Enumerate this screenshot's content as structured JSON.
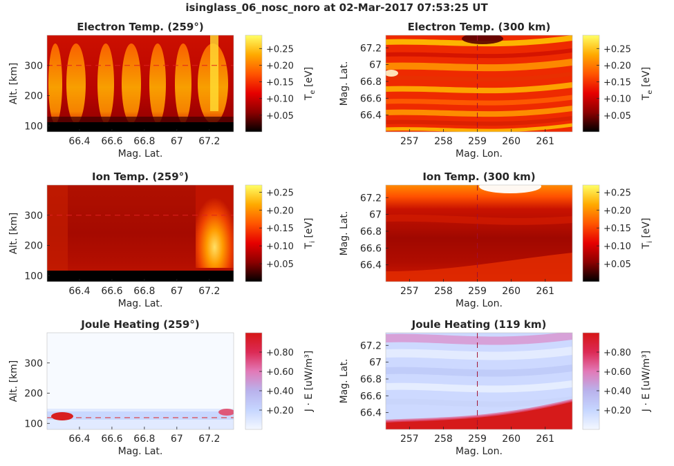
{
  "figure_title": "isinglass_06_nosc_noro at 02-Mar-2017 07:53:25 UT",
  "colormaps": {
    "hot": [
      "#000000",
      "#8b0000",
      "#e60000",
      "#ff5500",
      "#ffaa00",
      "#ffff66"
    ],
    "heat": [
      "#f4f8ff",
      "#c6d6ff",
      "#b9b2ec",
      "#e27ab8",
      "#dc2a55",
      "#d61616"
    ]
  },
  "chart_data": [
    {
      "id": "p1",
      "type": "heatmap",
      "title": "Electron Temp. (259°)",
      "xlabel": "Mag. Lat.",
      "ylabel": "Alt. [km]",
      "xlim": [
        66.2,
        67.35
      ],
      "ylim": [
        80,
        400
      ],
      "xticks": [
        66.4,
        66.6,
        66.8,
        67,
        67.2
      ],
      "xticklabels": [
        "66.4",
        "66.6",
        "66.8",
        "67",
        "67.2"
      ],
      "yticks": [
        100,
        200,
        300
      ],
      "yticklabels": [
        "100",
        "200",
        "300"
      ],
      "ref_line": {
        "axis": "y",
        "value": 300
      },
      "colorbar": {
        "label": "T",
        "label_sub": "e",
        "label_unit": "[eV]",
        "cmap": "hot",
        "range": [
          0,
          0.29
        ],
        "ticks": [
          0.05,
          0.1,
          0.15,
          0.2,
          0.25
        ],
        "ticklabels": [
          "+0.05",
          "+0.10",
          "+0.15",
          "+0.20",
          "+0.25"
        ]
      }
    },
    {
      "id": "p2",
      "type": "heatmap",
      "title": "Electron Temp. (300 km)",
      "xlabel": "Mag. Lon.",
      "ylabel": "Mag. Lat.",
      "xlim": [
        256.3,
        261.8
      ],
      "ylim": [
        66.2,
        67.35
      ],
      "xticks": [
        257,
        258,
        259,
        260,
        261
      ],
      "xticklabels": [
        "257",
        "258",
        "259",
        "260",
        "261"
      ],
      "yticks": [
        66.4,
        66.6,
        66.8,
        67,
        67.2
      ],
      "yticklabels": [
        "66.4",
        "66.6",
        "66.8",
        "67",
        "67.2"
      ],
      "ref_line": {
        "axis": "x",
        "value": 259
      },
      "colorbar": {
        "label": "T",
        "label_sub": "e",
        "label_unit": "[eV]",
        "cmap": "hot",
        "range": [
          0,
          0.29
        ],
        "ticks": [
          0.05,
          0.1,
          0.15,
          0.2,
          0.25
        ],
        "ticklabels": [
          "+0.05",
          "+0.10",
          "+0.15",
          "+0.20",
          "+0.25"
        ]
      }
    },
    {
      "id": "p3",
      "type": "heatmap",
      "title": "Ion Temp. (259°)",
      "xlabel": "Mag. Lat.",
      "ylabel": "Alt. [km]",
      "xlim": [
        66.2,
        67.35
      ],
      "ylim": [
        80,
        400
      ],
      "xticks": [
        66.4,
        66.6,
        66.8,
        67,
        67.2
      ],
      "xticklabels": [
        "66.4",
        "66.6",
        "66.8",
        "67",
        "67.2"
      ],
      "yticks": [
        100,
        200,
        300
      ],
      "yticklabels": [
        "100",
        "200",
        "300"
      ],
      "ref_line": {
        "axis": "y",
        "value": 300
      },
      "colorbar": {
        "label": "T",
        "label_sub": "i",
        "label_unit": "[eV]",
        "cmap": "hot",
        "range": [
          0,
          0.27
        ],
        "ticks": [
          0.05,
          0.1,
          0.15,
          0.2,
          0.25
        ],
        "ticklabels": [
          "+0.05",
          "+0.10",
          "+0.15",
          "+0.20",
          "+0.25"
        ]
      }
    },
    {
      "id": "p4",
      "type": "heatmap",
      "title": "Ion Temp. (300 km)",
      "xlabel": "Mag. Lon.",
      "ylabel": "Mag. Lat.",
      "xlim": [
        256.3,
        261.8
      ],
      "ylim": [
        66.2,
        67.35
      ],
      "xticks": [
        257,
        258,
        259,
        260,
        261
      ],
      "xticklabels": [
        "257",
        "258",
        "259",
        "260",
        "261"
      ],
      "yticks": [
        66.4,
        66.6,
        66.8,
        67,
        67.2
      ],
      "yticklabels": [
        "66.4",
        "66.6",
        "66.8",
        "67",
        "67.2"
      ],
      "ref_line": {
        "axis": "x",
        "value": 259
      },
      "colorbar": {
        "label": "T",
        "label_sub": "i",
        "label_unit": "[eV]",
        "cmap": "hot",
        "range": [
          0,
          0.27
        ],
        "ticks": [
          0.05,
          0.1,
          0.15,
          0.2,
          0.25
        ],
        "ticklabels": [
          "+0.05",
          "+0.10",
          "+0.15",
          "+0.20",
          "+0.25"
        ]
      }
    },
    {
      "id": "p5",
      "type": "heatmap",
      "title": "Joule Heating (259°)",
      "xlabel": "Mag. Lat.",
      "ylabel": "Alt. [km]",
      "xlim": [
        66.2,
        67.35
      ],
      "ylim": [
        80,
        400
      ],
      "xticks": [
        66.4,
        66.6,
        66.8,
        67,
        67.2
      ],
      "xticklabels": [
        "66.4",
        "66.6",
        "66.8",
        "67",
        "67.2"
      ],
      "yticks": [
        100,
        200,
        300
      ],
      "yticklabels": [
        "100",
        "200",
        "300"
      ],
      "ref_line": {
        "axis": "y",
        "value": 119
      },
      "colorbar": {
        "label": "J · E",
        "label_sub": "",
        "label_unit": "[uW/m³]",
        "cmap": "heat",
        "range": [
          0,
          1.0
        ],
        "ticks": [
          0.2,
          0.4,
          0.6,
          0.8
        ],
        "ticklabels": [
          "+0.20",
          "+0.40",
          "+0.60",
          "+0.80"
        ]
      }
    },
    {
      "id": "p6",
      "type": "heatmap",
      "title": "Joule Heating (119 km)",
      "xlabel": "Mag. Lon.",
      "ylabel": "Mag. Lat.",
      "xlim": [
        256.3,
        261.8
      ],
      "ylim": [
        66.2,
        67.35
      ],
      "xticks": [
        257,
        258,
        259,
        260,
        261
      ],
      "xticklabels": [
        "257",
        "258",
        "259",
        "260",
        "261"
      ],
      "yticks": [
        66.4,
        66.6,
        66.8,
        67,
        67.2
      ],
      "yticklabels": [
        "66.4",
        "66.6",
        "66.8",
        "67",
        "67.2"
      ],
      "ref_line": {
        "axis": "x",
        "value": 259
      },
      "colorbar": {
        "label": "J · E",
        "label_sub": "",
        "label_unit": "[uW/m³]",
        "cmap": "heat",
        "range": [
          0,
          1.0
        ],
        "ticks": [
          0.2,
          0.4,
          0.6,
          0.8
        ],
        "ticklabels": [
          "+0.20",
          "+0.40",
          "+0.60",
          "+0.80"
        ]
      }
    }
  ]
}
